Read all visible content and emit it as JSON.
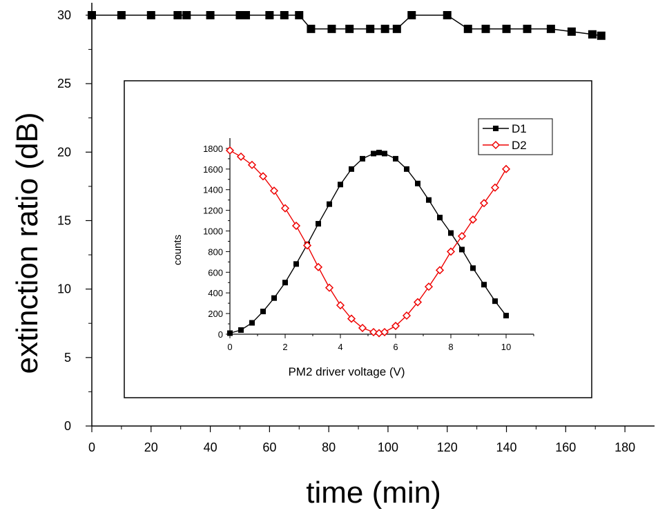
{
  "chart_data": [
    {
      "type": "line",
      "xlabel": "time (min)",
      "ylabel": "extinction ratio (dB)",
      "xlim": [
        0,
        190
      ],
      "ylim": [
        0,
        30
      ],
      "xticks": [
        0,
        20,
        40,
        60,
        80,
        100,
        120,
        140,
        160,
        180
      ],
      "yticks": [
        0,
        5,
        10,
        15,
        20,
        25,
        30
      ],
      "grid": false,
      "series": [
        {
          "color": "#000000",
          "marker": "filled-square",
          "x": [
            0,
            10,
            20,
            29,
            32,
            40,
            50,
            52,
            60,
            65,
            70,
            74,
            81,
            87,
            94,
            99,
            103,
            108,
            120,
            127,
            133,
            140,
            147,
            155,
            162,
            169,
            172
          ],
          "y": [
            30,
            30,
            30,
            30,
            30,
            30,
            30,
            30,
            30,
            30,
            30,
            29,
            29,
            29,
            29,
            29,
            29,
            30,
            30,
            29,
            29,
            29,
            29,
            29,
            28.8,
            28.6,
            28.5
          ]
        }
      ]
    },
    {
      "type": "line",
      "xlabel": "PM2 driver voltage (V)",
      "ylabel": "counts",
      "xlim": [
        0,
        11
      ],
      "ylim": [
        0,
        1900
      ],
      "xticks": [
        0,
        2,
        4,
        6,
        8,
        10
      ],
      "yticks": [
        0,
        200,
        400,
        600,
        800,
        1000,
        1200,
        1400,
        1600,
        1800
      ],
      "legend_position": "top-right",
      "series": [
        {
          "name": "D1",
          "color": "#000000",
          "marker": "filled-square",
          "x": [
            0,
            0.4,
            0.8,
            1.2,
            1.6,
            2.0,
            2.4,
            2.8,
            3.2,
            3.6,
            4.0,
            4.4,
            4.8,
            5.2,
            5.4,
            5.6,
            6.0,
            6.4,
            6.8,
            7.2,
            7.6,
            8.0,
            8.4,
            8.8,
            9.2,
            9.6,
            10.0
          ],
          "y": [
            10,
            40,
            110,
            220,
            350,
            500,
            680,
            870,
            1070,
            1260,
            1450,
            1600,
            1700,
            1750,
            1760,
            1750,
            1700,
            1600,
            1460,
            1300,
            1130,
            980,
            820,
            640,
            480,
            320,
            180
          ]
        },
        {
          "name": "D2",
          "color": "#ee0000",
          "marker": "open-diamond",
          "x": [
            0,
            0.4,
            0.8,
            1.2,
            1.6,
            2.0,
            2.4,
            2.8,
            3.2,
            3.6,
            4.0,
            4.4,
            4.8,
            5.2,
            5.4,
            5.6,
            6.0,
            6.4,
            6.8,
            7.2,
            7.6,
            8.0,
            8.4,
            8.8,
            9.2,
            9.6,
            10.0
          ],
          "y": [
            1780,
            1720,
            1640,
            1530,
            1390,
            1220,
            1050,
            860,
            650,
            450,
            280,
            150,
            60,
            20,
            10,
            20,
            80,
            180,
            310,
            460,
            620,
            800,
            950,
            1110,
            1270,
            1420,
            1600
          ]
        }
      ]
    }
  ]
}
